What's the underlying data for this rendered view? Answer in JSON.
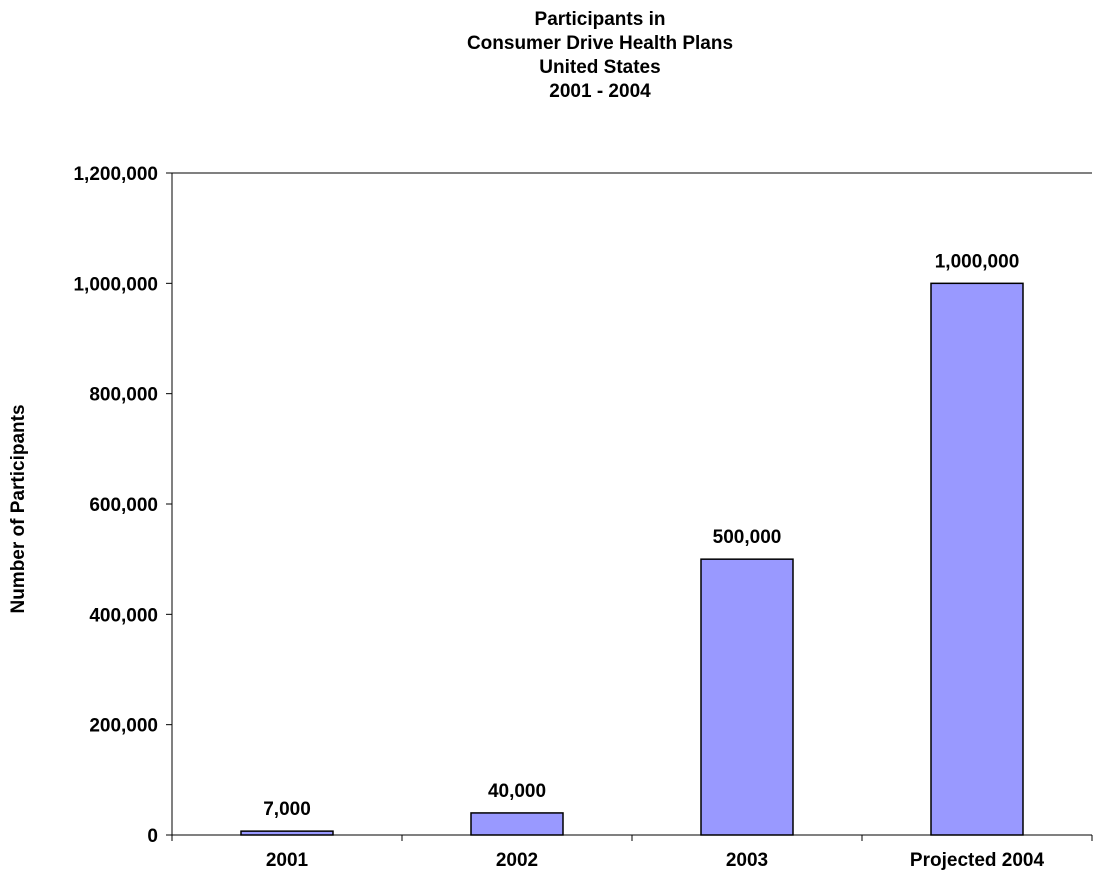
{
  "chart_data": {
    "type": "bar",
    "title_lines": [
      "Participants in",
      "Consumer Drive Health Plans",
      "United States",
      "2001 - 2004"
    ],
    "xlabel": "",
    "ylabel": "Number of Participants",
    "categories": [
      "2001",
      "2002",
      "2003",
      "Projected 2004"
    ],
    "values": [
      7000,
      40000,
      500000,
      1000000
    ],
    "data_labels": [
      "7,000",
      "40,000",
      "500,000",
      "1,000,000"
    ],
    "ylim": [
      0,
      1200000
    ],
    "yticks": [
      0,
      200000,
      400000,
      600000,
      800000,
      1000000,
      1200000
    ],
    "ytick_labels": [
      "0",
      "200,000",
      "400,000",
      "600,000",
      "800,000",
      "1,000,000",
      "1,200,000"
    ],
    "grid": false,
    "legend": "none",
    "bar_color": "#9999ff",
    "bar_edge_color": "#000000"
  }
}
